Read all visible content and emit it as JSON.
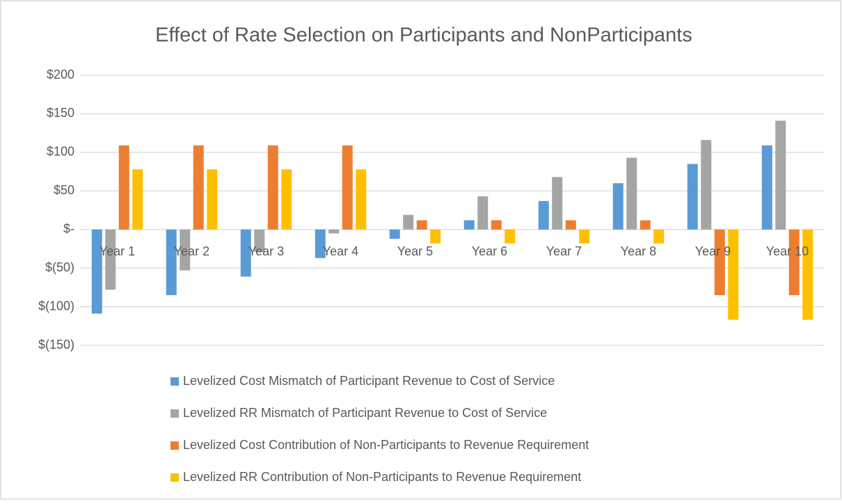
{
  "chart_data": {
    "type": "bar",
    "title": "Effect of Rate Selection on Participants and NonParticipants",
    "categories": [
      "Year 1",
      "Year 2",
      "Year 3",
      "Year 4",
      "Year 5",
      "Year 6",
      "Year 7",
      "Year 8",
      "Year 9",
      "Year 10"
    ],
    "series": [
      {
        "name": "Levelized Cost Mismatch of Participant Revenue to Cost of Service",
        "color": "#5b9bd5",
        "values": [
          -109,
          -85,
          -61,
          -37,
          -12,
          12,
          37,
          60,
          85,
          109
        ]
      },
      {
        "name": "Levelized RR Mismatch of Participant Revenue to Cost of Service",
        "color": "#a5a5a5",
        "values": [
          -78,
          -53,
          -29,
          -5,
          19,
          43,
          68,
          93,
          116,
          141
        ]
      },
      {
        "name": "Levelized Cost Contribution of Non-Participants to Revenue Requirement",
        "color": "#ed7d31",
        "values": [
          109,
          109,
          109,
          109,
          12,
          12,
          12,
          12,
          -85,
          -85
        ]
      },
      {
        "name": "Levelized RR Contribution of Non-Participants to Revenue Requirement",
        "color": "#ffc000",
        "values": [
          78,
          78,
          78,
          78,
          -18,
          -18,
          -18,
          -18,
          -117,
          -117
        ]
      }
    ],
    "ylim": [
      -150,
      200
    ],
    "yticks": [
      {
        "value": 200,
        "label": "$200"
      },
      {
        "value": 150,
        "label": "$150"
      },
      {
        "value": 100,
        "label": "$100"
      },
      {
        "value": 50,
        "label": "$50"
      },
      {
        "value": 0,
        "label": "$-"
      },
      {
        "value": -50,
        "label": "$(50)"
      },
      {
        "value": -100,
        "label": "$(100)"
      },
      {
        "value": -150,
        "label": "$(150)"
      }
    ],
    "grid": true,
    "legend": "bottom"
  }
}
